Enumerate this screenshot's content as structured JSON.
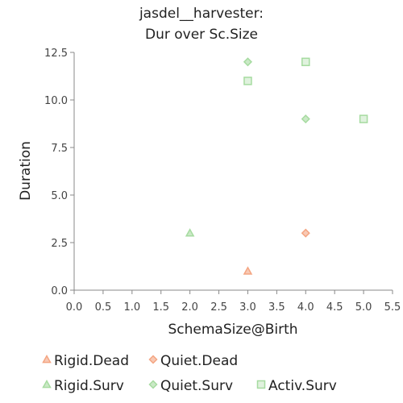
{
  "chart_data": {
    "type": "scatter",
    "title_line1": "jasdel__harvester:",
    "title_line2": "Dur over Sc.Size",
    "xlabel": "SchemaSize@Birth",
    "ylabel": "Duration",
    "xlim": [
      0,
      5.5
    ],
    "ylim": [
      0,
      12.5
    ],
    "xticks": [
      "0.0",
      "0.5",
      "1.0",
      "1.5",
      "2.0",
      "2.5",
      "3.0",
      "3.5",
      "4.0",
      "4.5",
      "5.0",
      "5.5"
    ],
    "yticks": [
      "0.0",
      "2.5",
      "5.0",
      "7.5",
      "10.0",
      "12.5"
    ],
    "legend_position": "bottom",
    "series": [
      {
        "name": "Rigid.Dead",
        "marker": "triangle",
        "color": "#f4a582",
        "points": [
          [
            3,
            1
          ]
        ]
      },
      {
        "name": "Quiet.Dead",
        "marker": "diamond",
        "color": "#f4a582",
        "points": [
          [
            4,
            3
          ]
        ]
      },
      {
        "name": "Rigid.Surv",
        "marker": "triangle",
        "color": "#a6dba0",
        "points": [
          [
            2,
            3
          ]
        ]
      },
      {
        "name": "Quiet.Surv",
        "marker": "diamond",
        "color": "#a6dba0",
        "points": [
          [
            3,
            12
          ],
          [
            4,
            9
          ]
        ]
      },
      {
        "name": "Activ.Surv",
        "marker": "square",
        "color": "#a6dba0",
        "points": [
          [
            3,
            11
          ],
          [
            4,
            12
          ],
          [
            5,
            9
          ]
        ]
      }
    ]
  }
}
